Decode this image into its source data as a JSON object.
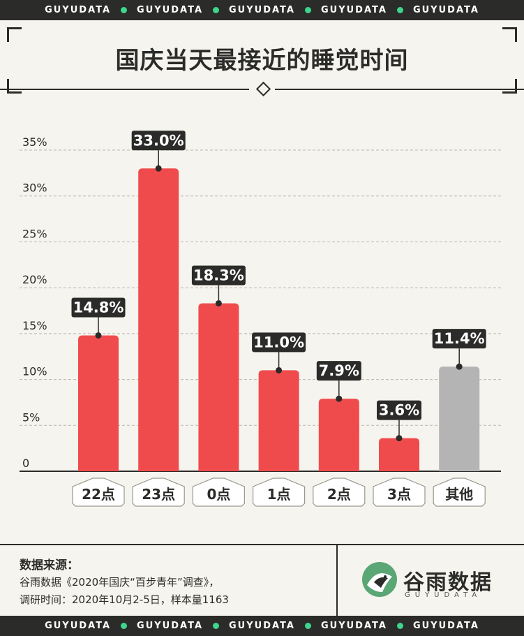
{
  "band_text": "GUYUDATA",
  "title": "国庆当天最接近的睡觉时间",
  "colors": {
    "bar": "#f04b4c",
    "other": "#b4b4b4",
    "dark": "#2b2b29",
    "accent_dot": "#3dd68c",
    "background": "#f6f4ee"
  },
  "chart_data": {
    "type": "bar",
    "categories": [
      "22点",
      "23点",
      "0点",
      "1点",
      "2点",
      "3点",
      "其他"
    ],
    "values": [
      14.8,
      33.0,
      18.3,
      11.0,
      7.9,
      3.6,
      11.4
    ],
    "value_labels": [
      "14.8%",
      "33.0%",
      "18.3%",
      "11.0%",
      "7.9%",
      "3.6%",
      "11.4%"
    ],
    "y_ticks": [
      "0",
      "5%",
      "10%",
      "15%",
      "20%",
      "25%",
      "30%",
      "35%"
    ],
    "ylim": [
      0,
      35
    ],
    "grid": true,
    "highlight_gray": [
      "其他"
    ]
  },
  "footer": {
    "source_title": "数据来源：",
    "source_line1": "谷雨数据《2020年国庆“百步青年”调查》，",
    "source_line2": "调研时间：2020年10月2-5日，样本量1163",
    "brand_name": "谷雨数据",
    "brand_sub": "GUYUDATA"
  }
}
